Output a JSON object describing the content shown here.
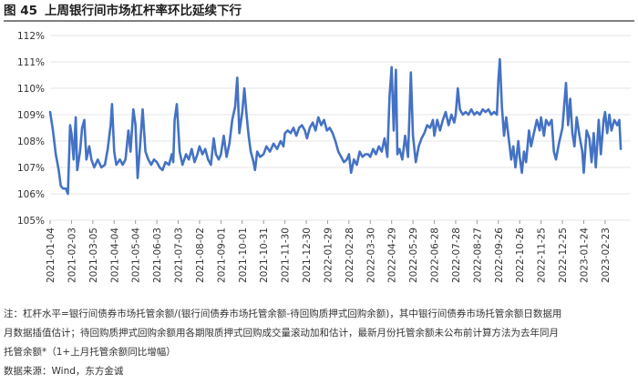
{
  "figure": {
    "number": "图 45",
    "title": "上周银行间市场杠杆率环比延续下行"
  },
  "notes": {
    "line1": "注：杠杆水平=银行间债券市场托管余额/(银行间债券市场托管余额-待回购质押式回购余额)，其中银行间债券市场托管余额日数据用",
    "line2": "月数据插值估计；待回购质押式回购余额用各期限质押式回购成交量滚动加和估计，最新月份托管余额未公布前计算方法为去年同月",
    "line3": "托管余额*（1+上月托管余额同比增幅）",
    "source": "数据来源：Wind，东方金诚"
  },
  "colors": {
    "line": "#4472C4",
    "grid": "#e6e6e6"
  },
  "chart_data": {
    "type": "line",
    "title": "上周银行间市场杠杆率环比延续下行",
    "ylim": [
      105,
      112
    ],
    "yticks": [
      105,
      106,
      107,
      108,
      109,
      110,
      111,
      112
    ],
    "ytick_labels": [
      "105%",
      "106%",
      "107%",
      "108%",
      "109%",
      "110%",
      "111%",
      "112%"
    ],
    "xlim": [
      "2021-01-04",
      "2023-03-31"
    ],
    "x_tick_labels": [
      "2021-01-04",
      "2021-02-03",
      "2021-03-05",
      "2021-04-04",
      "2021-05-04",
      "2021-06-03",
      "2021-07-03",
      "2021-08-02",
      "2021-09-01",
      "2021-10-01",
      "2021-10-31",
      "2021-11-30",
      "2021-12-30",
      "2022-01-29",
      "2022-02-28",
      "2022-03-30",
      "2022-04-29",
      "2022-05-29",
      "2022-06-28",
      "2022-07-28",
      "2022-08-27",
      "2022-09-26",
      "2022-10-26",
      "2022-11-25",
      "2022-12-25",
      "2023-01-24",
      "2023-02-23"
    ],
    "grid": true,
    "legend": "none",
    "series": [
      {
        "values": [
          [
            "2021-01-04",
            109.1
          ],
          [
            "2021-01-08",
            108.4
          ],
          [
            "2021-01-12",
            107.5
          ],
          [
            "2021-01-16",
            106.9
          ],
          [
            "2021-01-19",
            106.3
          ],
          [
            "2021-01-22",
            106.2
          ],
          [
            "2021-01-26",
            106.2
          ],
          [
            "2021-01-29",
            106.0
          ],
          [
            "2021-02-01",
            108.6
          ],
          [
            "2021-02-03",
            108.3
          ],
          [
            "2021-02-06",
            107.3
          ],
          [
            "2021-02-09",
            108.9
          ],
          [
            "2021-02-11",
            106.9
          ],
          [
            "2021-02-15",
            107.6
          ],
          [
            "2021-02-18",
            108.5
          ],
          [
            "2021-02-21",
            108.8
          ],
          [
            "2021-02-24",
            107.3
          ],
          [
            "2021-02-28",
            107.8
          ],
          [
            "2021-03-03",
            107.3
          ],
          [
            "2021-03-07",
            107.0
          ],
          [
            "2021-03-12",
            107.3
          ],
          [
            "2021-03-17",
            107.0
          ],
          [
            "2021-03-22",
            107.1
          ],
          [
            "2021-03-26",
            107.7
          ],
          [
            "2021-03-30",
            108.6
          ],
          [
            "2021-04-01",
            109.4
          ],
          [
            "2021-04-04",
            107.6
          ],
          [
            "2021-04-07",
            107.1
          ],
          [
            "2021-04-12",
            107.3
          ],
          [
            "2021-04-16",
            107.1
          ],
          [
            "2021-04-20",
            107.3
          ],
          [
            "2021-04-24",
            108.4
          ],
          [
            "2021-04-27",
            107.6
          ],
          [
            "2021-05-01",
            109.2
          ],
          [
            "2021-05-04",
            108.6
          ],
          [
            "2021-05-07",
            106.6
          ],
          [
            "2021-05-10",
            107.7
          ],
          [
            "2021-05-14",
            109.2
          ],
          [
            "2021-05-18",
            107.6
          ],
          [
            "2021-05-22",
            107.3
          ],
          [
            "2021-05-26",
            107.1
          ],
          [
            "2021-05-30",
            107.3
          ],
          [
            "2021-06-03",
            107.2
          ],
          [
            "2021-06-07",
            107.0
          ],
          [
            "2021-06-11",
            106.9
          ],
          [
            "2021-06-15",
            107.2
          ],
          [
            "2021-06-20",
            107.1
          ],
          [
            "2021-06-24",
            107.5
          ],
          [
            "2021-06-26",
            107.2
          ],
          [
            "2021-06-28",
            108.8
          ],
          [
            "2021-07-01",
            109.4
          ],
          [
            "2021-07-05",
            107.6
          ],
          [
            "2021-07-09",
            107.1
          ],
          [
            "2021-07-14",
            107.5
          ],
          [
            "2021-07-18",
            107.3
          ],
          [
            "2021-07-22",
            107.7
          ],
          [
            "2021-07-26",
            107.2
          ],
          [
            "2021-07-30",
            107.5
          ],
          [
            "2021-08-02",
            107.8
          ],
          [
            "2021-08-06",
            107.5
          ],
          [
            "2021-08-10",
            107.7
          ],
          [
            "2021-08-14",
            107.3
          ],
          [
            "2021-08-18",
            107.1
          ],
          [
            "2021-08-22",
            108.1
          ],
          [
            "2021-08-25",
            107.5
          ],
          [
            "2021-08-29",
            107.3
          ],
          [
            "2021-09-01",
            107.5
          ],
          [
            "2021-09-05",
            108.2
          ],
          [
            "2021-09-09",
            107.4
          ],
          [
            "2021-09-13",
            107.9
          ],
          [
            "2021-09-17",
            108.8
          ],
          [
            "2021-09-21",
            109.3
          ],
          [
            "2021-09-24",
            110.4
          ],
          [
            "2021-09-27",
            108.3
          ],
          [
            "2021-10-01",
            109.1
          ],
          [
            "2021-10-04",
            110.0
          ],
          [
            "2021-10-07",
            109.0
          ],
          [
            "2021-10-10",
            108.2
          ],
          [
            "2021-10-13",
            107.6
          ],
          [
            "2021-10-16",
            107.3
          ],
          [
            "2021-10-19",
            106.9
          ],
          [
            "2021-10-22",
            107.6
          ],
          [
            "2021-10-26",
            107.4
          ],
          [
            "2021-10-31",
            107.5
          ],
          [
            "2021-11-04",
            107.8
          ],
          [
            "2021-11-09",
            107.6
          ],
          [
            "2021-11-14",
            107.9
          ],
          [
            "2021-11-19",
            107.7
          ],
          [
            "2021-11-24",
            108.0
          ],
          [
            "2021-11-28",
            107.8
          ],
          [
            "2021-11-30",
            108.3
          ],
          [
            "2021-12-04",
            108.4
          ],
          [
            "2021-12-08",
            108.3
          ],
          [
            "2021-12-12",
            108.5
          ],
          [
            "2021-12-16",
            108.2
          ],
          [
            "2021-12-20",
            108.5
          ],
          [
            "2021-12-24",
            108.6
          ],
          [
            "2021-12-28",
            108.4
          ],
          [
            "2021-12-31",
            108.1
          ],
          [
            "2022-01-04",
            108.5
          ],
          [
            "2022-01-08",
            108.7
          ],
          [
            "2022-01-12",
            108.4
          ],
          [
            "2022-01-16",
            108.9
          ],
          [
            "2022-01-20",
            108.6
          ],
          [
            "2022-01-24",
            108.8
          ],
          [
            "2022-01-28",
            108.4
          ],
          [
            "2022-02-01",
            108.5
          ],
          [
            "2022-02-05",
            108.3
          ],
          [
            "2022-02-09",
            108.0
          ],
          [
            "2022-02-13",
            107.6
          ],
          [
            "2022-02-17",
            107.4
          ],
          [
            "2022-02-21",
            107.2
          ],
          [
            "2022-02-25",
            107.3
          ],
          [
            "2022-02-28",
            107.5
          ],
          [
            "2022-03-03",
            106.8
          ],
          [
            "2022-03-07",
            107.3
          ],
          [
            "2022-03-11",
            107.1
          ],
          [
            "2022-03-15",
            107.6
          ],
          [
            "2022-03-19",
            107.4
          ],
          [
            "2022-03-23",
            107.5
          ],
          [
            "2022-03-27",
            107.5
          ],
          [
            "2022-03-30",
            107.4
          ],
          [
            "2022-04-03",
            107.7
          ],
          [
            "2022-04-07",
            107.5
          ],
          [
            "2022-04-11",
            107.8
          ],
          [
            "2022-04-15",
            107.6
          ],
          [
            "2022-04-19",
            108.1
          ],
          [
            "2022-04-23",
            107.4
          ],
          [
            "2022-04-26",
            109.7
          ],
          [
            "2022-04-29",
            110.8
          ],
          [
            "2022-05-02",
            108.4
          ],
          [
            "2022-05-05",
            110.7
          ],
          [
            "2022-05-07",
            107.5
          ],
          [
            "2022-05-10",
            107.7
          ],
          [
            "2022-05-14",
            107.3
          ],
          [
            "2022-05-18",
            108.2
          ],
          [
            "2022-05-22",
            107.4
          ],
          [
            "2022-05-26",
            110.6
          ],
          [
            "2022-05-29",
            108.2
          ],
          [
            "2022-06-02",
            107.2
          ],
          [
            "2022-06-06",
            107.8
          ],
          [
            "2022-06-10",
            108.1
          ],
          [
            "2022-06-14",
            108.3
          ],
          [
            "2022-06-18",
            108.6
          ],
          [
            "2022-06-22",
            108.5
          ],
          [
            "2022-06-26",
            108.8
          ],
          [
            "2022-06-28",
            108.2
          ],
          [
            "2022-07-02",
            108.8
          ],
          [
            "2022-07-06",
            108.4
          ],
          [
            "2022-07-10",
            108.8
          ],
          [
            "2022-07-14",
            109.1
          ],
          [
            "2022-07-18",
            108.6
          ],
          [
            "2022-07-22",
            109.0
          ],
          [
            "2022-07-26",
            108.7
          ],
          [
            "2022-07-28",
            109.0
          ],
          [
            "2022-07-31",
            110.0
          ],
          [
            "2022-08-03",
            109.2
          ],
          [
            "2022-08-07",
            109.0
          ],
          [
            "2022-08-11",
            109.1
          ],
          [
            "2022-08-15",
            109.0
          ],
          [
            "2022-08-19",
            109.2
          ],
          [
            "2022-08-23",
            109.0
          ],
          [
            "2022-08-27",
            109.1
          ],
          [
            "2022-08-31",
            109.0
          ],
          [
            "2022-09-04",
            109.2
          ],
          [
            "2022-09-08",
            109.1
          ],
          [
            "2022-09-12",
            109.2
          ],
          [
            "2022-09-16",
            109.0
          ],
          [
            "2022-09-20",
            109.1
          ],
          [
            "2022-09-24",
            109.0
          ],
          [
            "2022-09-26",
            110.3
          ],
          [
            "2022-09-28",
            111.1
          ],
          [
            "2022-10-01",
            109.3
          ],
          [
            "2022-10-04",
            108.2
          ],
          [
            "2022-10-07",
            108.9
          ],
          [
            "2022-10-11",
            108.0
          ],
          [
            "2022-10-14",
            107.3
          ],
          [
            "2022-10-17",
            107.8
          ],
          [
            "2022-10-20",
            107.0
          ],
          [
            "2022-10-24",
            108.0
          ],
          [
            "2022-10-26",
            107.4
          ],
          [
            "2022-10-29",
            106.8
          ],
          [
            "2022-11-01",
            107.6
          ],
          [
            "2022-11-04",
            107.2
          ],
          [
            "2022-11-08",
            108.4
          ],
          [
            "2022-11-11",
            107.8
          ],
          [
            "2022-11-15",
            108.3
          ],
          [
            "2022-11-19",
            108.8
          ],
          [
            "2022-11-23",
            108.4
          ],
          [
            "2022-11-25",
            108.9
          ],
          [
            "2022-11-29",
            108.2
          ],
          [
            "2022-12-02",
            108.8
          ],
          [
            "2022-12-06",
            108.6
          ],
          [
            "2022-12-10",
            108.8
          ],
          [
            "2022-12-13",
            107.6
          ],
          [
            "2022-12-16",
            107.3
          ],
          [
            "2022-12-20",
            107.9
          ],
          [
            "2022-12-25",
            108.5
          ],
          [
            "2022-12-28",
            109.5
          ],
          [
            "2022-12-30",
            110.2
          ],
          [
            "2023-01-02",
            108.6
          ],
          [
            "2023-01-05",
            109.6
          ],
          [
            "2023-01-08",
            108.3
          ],
          [
            "2023-01-11",
            107.8
          ],
          [
            "2023-01-14",
            108.9
          ],
          [
            "2023-01-18",
            108.2
          ],
          [
            "2023-01-22",
            107.6
          ],
          [
            "2023-01-24",
            106.8
          ],
          [
            "2023-01-28",
            108.4
          ],
          [
            "2023-02-01",
            108.1
          ],
          [
            "2023-02-04",
            107.2
          ],
          [
            "2023-02-07",
            108.3
          ],
          [
            "2023-02-10",
            107.0
          ],
          [
            "2023-02-14",
            108.8
          ],
          [
            "2023-02-17",
            107.5
          ],
          [
            "2023-02-21",
            108.8
          ],
          [
            "2023-02-23",
            109.1
          ],
          [
            "2023-02-26",
            108.3
          ],
          [
            "2023-03-01",
            109.0
          ],
          [
            "2023-03-04",
            108.4
          ],
          [
            "2023-03-08",
            108.8
          ],
          [
            "2023-03-12",
            108.6
          ],
          [
            "2023-03-15",
            108.8
          ],
          [
            "2023-03-17",
            107.7
          ]
        ]
      }
    ]
  }
}
